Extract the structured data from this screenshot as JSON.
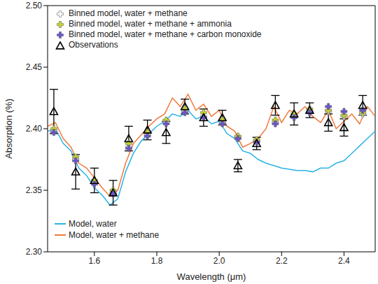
{
  "chart_data": {
    "type": "line",
    "x_label": "Wavelength (μm)",
    "y_label": "Absorption (%)",
    "xlim": [
      1.45,
      2.5
    ],
    "xticks": [
      1.6,
      1.8,
      {
        "value": 2,
        "label": "2.0"
      },
      2.2,
      2.4
    ],
    "ylim": [
      2.3,
      2.5
    ],
    "yticks": [
      {
        "value": 2.3,
        "label": "2.30"
      },
      2.35,
      {
        "value": 2.4,
        "label": "2.40"
      },
      2.45,
      {
        "value": 2.5,
        "label": "2.50"
      }
    ],
    "legend": "upper left",
    "series": [
      {
        "name": "Model, water",
        "type": "line",
        "color": "#2ab3e6",
        "x": [
          1.45,
          1.475,
          1.5,
          1.525,
          1.55,
          1.575,
          1.6,
          1.625,
          1.65,
          1.675,
          1.7,
          1.725,
          1.75,
          1.775,
          1.8,
          1.825,
          1.85,
          1.875,
          1.9,
          1.925,
          1.95,
          1.975,
          2.0,
          2.025,
          2.05,
          2.075,
          2.1,
          2.125,
          2.15,
          2.175,
          2.2,
          2.225,
          2.25,
          2.275,
          2.3,
          2.325,
          2.35,
          2.375,
          2.4,
          2.425,
          2.45,
          2.475,
          2.5
        ],
        "values": [
          2.398,
          2.4,
          2.388,
          2.382,
          2.368,
          2.362,
          2.352,
          2.346,
          2.338,
          2.343,
          2.365,
          2.38,
          2.39,
          2.396,
          2.402,
          2.406,
          2.412,
          2.41,
          2.415,
          2.408,
          2.41,
          2.404,
          2.406,
          2.396,
          2.392,
          2.382,
          2.38,
          2.375,
          2.372,
          2.37,
          2.368,
          2.367,
          2.366,
          2.366,
          2.365,
          2.368,
          2.368,
          2.372,
          2.374,
          2.38,
          2.386,
          2.392,
          2.398
        ]
      },
      {
        "name": "Model, water + methane",
        "type": "line",
        "color": "#f07a3c",
        "x": [
          1.45,
          1.475,
          1.5,
          1.525,
          1.55,
          1.575,
          1.6,
          1.625,
          1.65,
          1.675,
          1.7,
          1.725,
          1.75,
          1.775,
          1.8,
          1.825,
          1.85,
          1.875,
          1.9,
          1.925,
          1.95,
          1.975,
          2.0,
          2.025,
          2.05,
          2.075,
          2.1,
          2.125,
          2.15,
          2.175,
          2.2,
          2.225,
          2.25,
          2.275,
          2.3,
          2.325,
          2.35,
          2.375,
          2.4,
          2.425,
          2.45,
          2.475,
          2.5
        ],
        "values": [
          2.402,
          2.405,
          2.392,
          2.385,
          2.372,
          2.368,
          2.36,
          2.352,
          2.345,
          2.35,
          2.372,
          2.388,
          2.395,
          2.402,
          2.408,
          2.412,
          2.425,
          2.418,
          2.428,
          2.415,
          2.42,
          2.41,
          2.415,
          2.402,
          2.398,
          2.385,
          2.388,
          2.392,
          2.4,
          2.418,
          2.405,
          2.415,
          2.412,
          2.418,
          2.41,
          2.405,
          2.415,
          2.4,
          2.406,
          2.412,
          2.404,
          2.418,
          2.41
        ]
      },
      {
        "name": "Binned model, water + methane",
        "type": "scatter",
        "marker": "plus",
        "color": "#ffffff",
        "x": [
          1.47,
          1.54,
          1.6,
          1.66,
          1.71,
          1.77,
          1.83,
          1.89,
          1.95,
          2.01,
          2.06,
          2.12,
          2.18,
          2.24,
          2.29,
          2.35,
          2.4,
          2.46
        ],
        "values": [
          2.398,
          2.375,
          2.356,
          2.348,
          2.385,
          2.395,
          2.405,
          2.414,
          2.41,
          2.405,
          2.393,
          2.39,
          2.405,
          2.41,
          2.414,
          2.414,
          2.41,
          2.412
        ]
      },
      {
        "name": "Binned model, water + methane + ammonia",
        "type": "scatter",
        "marker": "plus",
        "color": "#c8d42a",
        "x": [
          1.47,
          1.54,
          1.6,
          1.66,
          1.71,
          1.77,
          1.83,
          1.89,
          1.95,
          2.01,
          2.06,
          2.12,
          2.18,
          2.24,
          2.29,
          2.35,
          2.4,
          2.46
        ],
        "values": [
          2.4,
          2.377,
          2.358,
          2.35,
          2.388,
          2.397,
          2.407,
          2.416,
          2.413,
          2.407,
          2.394,
          2.391,
          2.407,
          2.412,
          2.416,
          2.415,
          2.411,
          2.413
        ]
      },
      {
        "name": "Binned model, water + methane + carbon monoxide",
        "type": "scatter",
        "marker": "plus",
        "color": "#6a55c8",
        "x": [
          1.47,
          1.54,
          1.6,
          1.66,
          1.71,
          1.77,
          1.83,
          1.89,
          1.95,
          2.01,
          2.06,
          2.12,
          2.18,
          2.24,
          2.29,
          2.35,
          2.4,
          2.46
        ],
        "values": [
          2.397,
          2.374,
          2.355,
          2.347,
          2.384,
          2.394,
          2.404,
          2.413,
          2.409,
          2.404,
          2.392,
          2.389,
          2.404,
          2.409,
          2.413,
          2.418,
          2.414,
          2.415
        ]
      },
      {
        "name": "Observations",
        "type": "scatter",
        "marker": "triangle",
        "color": "#000000",
        "x": [
          1.47,
          1.54,
          1.6,
          1.66,
          1.71,
          1.77,
          1.83,
          1.89,
          1.95,
          2.01,
          2.06,
          2.12,
          2.18,
          2.24,
          2.29,
          2.35,
          2.4,
          2.46
        ],
        "values": [
          2.414,
          2.365,
          2.358,
          2.348,
          2.392,
          2.399,
          2.397,
          2.418,
          2.409,
          2.409,
          2.37,
          2.388,
          2.419,
          2.412,
          2.415,
          2.405,
          2.401,
          2.419
        ],
        "errors": [
          0.018,
          0.014,
          0.01,
          0.01,
          0.01,
          0.008,
          0.009,
          0.006,
          0.007,
          0.006,
          0.005,
          0.005,
          0.008,
          0.009,
          0.006,
          0.007,
          0.007,
          0.008
        ]
      }
    ]
  }
}
